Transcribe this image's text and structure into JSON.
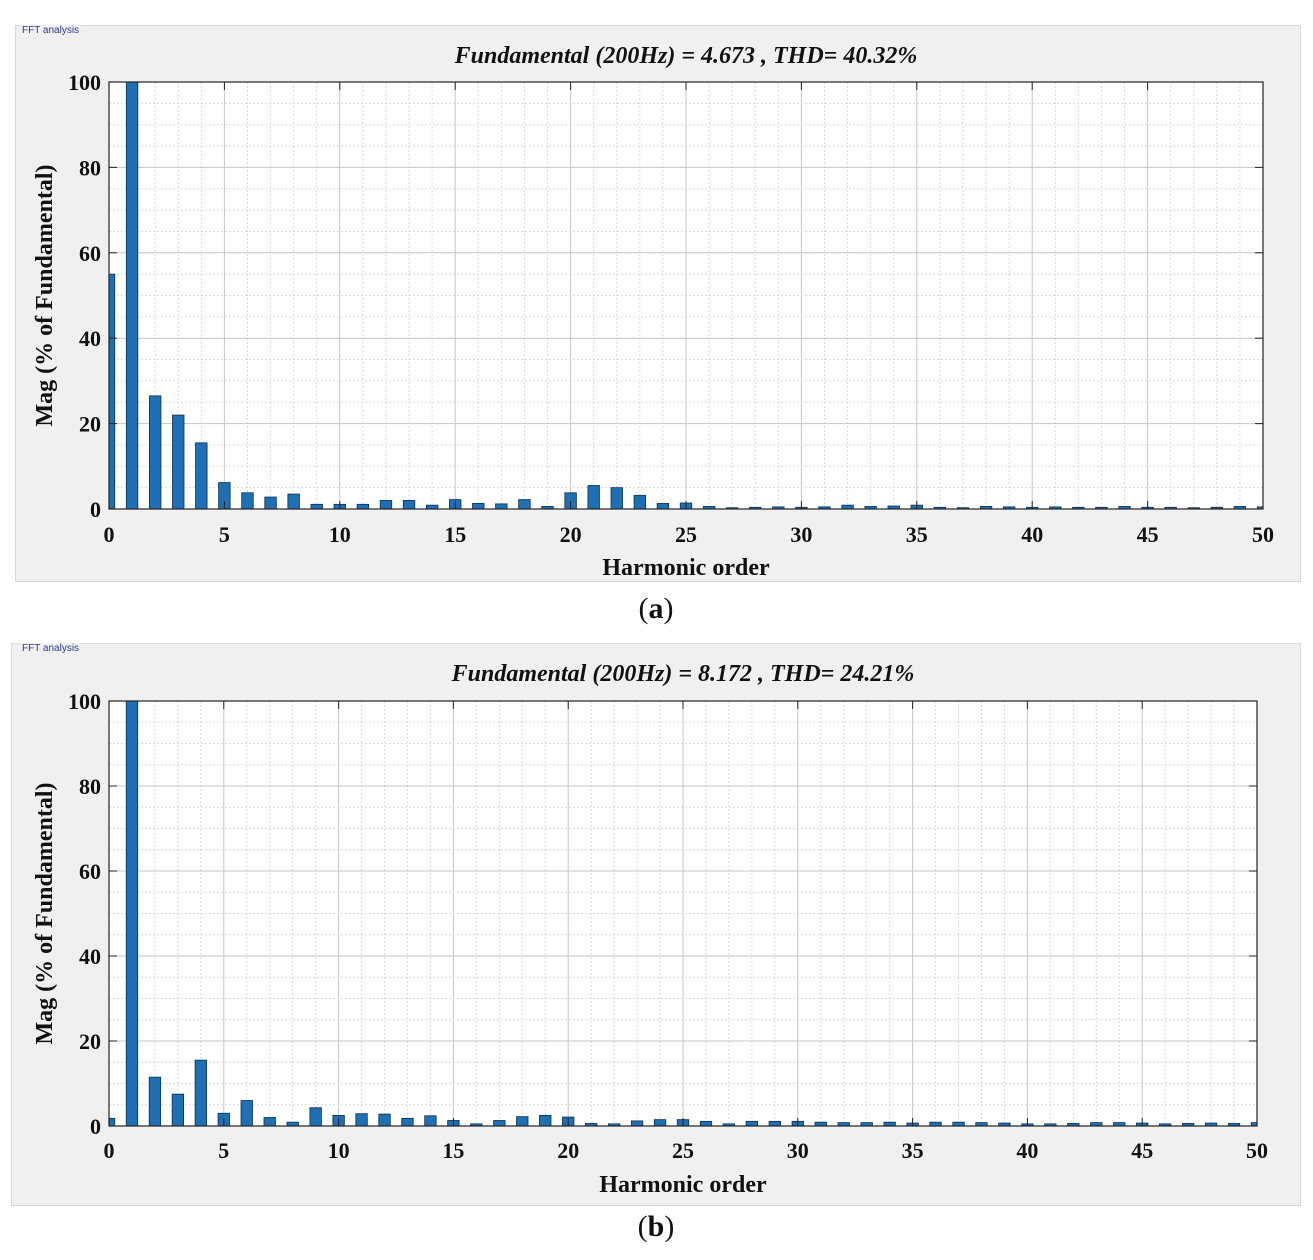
{
  "panel_label": "FFT analysis",
  "captions": {
    "a": "a",
    "b": "b"
  },
  "colors": {
    "bar": "#1f6fb4",
    "bar_edge": "#0c2f52",
    "grid": "#dadada",
    "grid_major": "#c6c6c6"
  },
  "chart_data": [
    {
      "type": "bar",
      "title": "Fundamental (200Hz) = 4.673 , THD= 40.32%",
      "xlabel": "Harmonic order",
      "ylabel": "Mag (% of Fundamental)",
      "xlim": [
        0,
        50
      ],
      "ylim": [
        0,
        100
      ],
      "xticks": [
        "0",
        "5",
        "10",
        "15",
        "20",
        "25",
        "30",
        "35",
        "40",
        "45",
        "50"
      ],
      "yticks": [
        "0",
        "20",
        "40",
        "60",
        "80",
        "100"
      ],
      "grid": true,
      "x": [
        0,
        1,
        2,
        3,
        4,
        5,
        6,
        7,
        8,
        9,
        10,
        11,
        12,
        13,
        14,
        15,
        16,
        17,
        18,
        19,
        20,
        21,
        22,
        23,
        24,
        25,
        26,
        27,
        28,
        29,
        30,
        31,
        32,
        33,
        34,
        35,
        36,
        37,
        38,
        39,
        40,
        41,
        42,
        43,
        44,
        45,
        46,
        47,
        48,
        49,
        50
      ],
      "values": [
        55,
        100,
        26.5,
        22,
        15.5,
        6.2,
        3.8,
        2.8,
        3.5,
        1.1,
        1.1,
        1.1,
        2,
        2,
        0.9,
        2.2,
        1.3,
        1.2,
        2.2,
        0.6,
        3.8,
        5.5,
        5,
        3.2,
        1.3,
        1.4,
        0.6,
        0.3,
        0.4,
        0.5,
        0.4,
        0.5,
        0.9,
        0.6,
        0.7,
        0.9,
        0.4,
        0.3,
        0.6,
        0.5,
        0.4,
        0.5,
        0.4,
        0.4,
        0.6,
        0.4,
        0.4,
        0.3,
        0.4,
        0.6,
        0.5
      ]
    },
    {
      "type": "bar",
      "title": "Fundamental (200Hz) = 8.172 , THD= 24.21%",
      "xlabel": "Harmonic order",
      "ylabel": "Mag (% of Fundamental)",
      "xlim": [
        0,
        50
      ],
      "ylim": [
        0,
        100
      ],
      "xticks": [
        "0",
        "5",
        "10",
        "15",
        "20",
        "25",
        "30",
        "35",
        "40",
        "45",
        "50"
      ],
      "yticks": [
        "0",
        "20",
        "40",
        "60",
        "80",
        "100"
      ],
      "grid": true,
      "x": [
        0,
        1,
        2,
        3,
        4,
        5,
        6,
        7,
        8,
        9,
        10,
        11,
        12,
        13,
        14,
        15,
        16,
        17,
        18,
        19,
        20,
        21,
        22,
        23,
        24,
        25,
        26,
        27,
        28,
        29,
        30,
        31,
        32,
        33,
        34,
        35,
        36,
        37,
        38,
        39,
        40,
        41,
        42,
        43,
        44,
        45,
        46,
        47,
        48,
        49,
        50
      ],
      "values": [
        1.8,
        100,
        11.5,
        7.5,
        15.5,
        3,
        6,
        2,
        0.9,
        4.3,
        2.5,
        2.9,
        2.8,
        1.8,
        2.4,
        1.3,
        0.5,
        1.3,
        2.2,
        2.5,
        2.1,
        0.6,
        0.5,
        1.2,
        1.5,
        1.5,
        1.1,
        0.5,
        1.1,
        1.1,
        1.1,
        0.9,
        0.8,
        0.8,
        0.9,
        0.7,
        0.9,
        0.9,
        0.8,
        0.7,
        0.5,
        0.5,
        0.6,
        0.8,
        0.8,
        0.7,
        0.5,
        0.6,
        0.7,
        0.6,
        0.8
      ]
    }
  ]
}
